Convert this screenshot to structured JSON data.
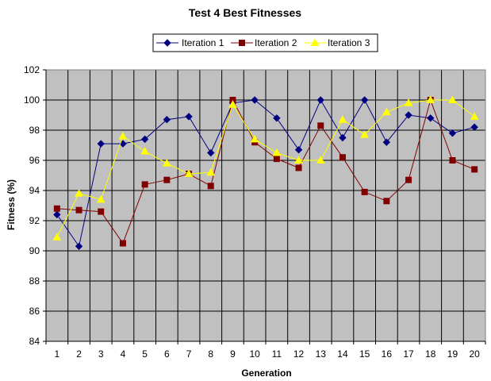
{
  "chart_data": {
    "type": "line",
    "title": "Test 4 Best Fitnesses",
    "xlabel": "Generation",
    "ylabel": "Fitness (%)",
    "x": [
      1,
      2,
      3,
      4,
      5,
      6,
      7,
      8,
      9,
      10,
      11,
      12,
      13,
      14,
      15,
      16,
      17,
      18,
      19,
      20
    ],
    "ylim": [
      84,
      102
    ],
    "yticks": [
      84,
      86,
      88,
      90,
      92,
      94,
      96,
      98,
      100,
      102
    ],
    "grid": true,
    "legend_position": "top-right",
    "plot_background": "#c0c0c0",
    "series": [
      {
        "name": "Iteration 1",
        "color": "#000080",
        "marker": "diamond",
        "values": [
          92.4,
          90.3,
          97.1,
          97.1,
          97.4,
          98.7,
          98.9,
          96.5,
          99.8,
          100.0,
          98.8,
          96.7,
          100.0,
          97.5,
          100.0,
          97.2,
          99.0,
          98.8,
          97.8,
          98.2
        ]
      },
      {
        "name": "Iteration 2",
        "color": "#800000",
        "marker": "square",
        "values": [
          92.8,
          92.7,
          92.6,
          90.5,
          94.4,
          94.7,
          95.1,
          94.3,
          100.0,
          97.2,
          96.1,
          95.5,
          98.3,
          96.2,
          93.9,
          93.3,
          94.7,
          100.0,
          96.0,
          95.4
        ]
      },
      {
        "name": "Iteration 3",
        "color": "#ffff00",
        "marker": "triangle",
        "values": [
          90.9,
          93.8,
          93.4,
          97.6,
          96.6,
          95.8,
          95.1,
          95.2,
          99.7,
          97.4,
          96.5,
          96.0,
          96.0,
          98.7,
          97.7,
          99.2,
          99.8,
          100.0,
          100.0,
          98.9
        ]
      }
    ]
  }
}
